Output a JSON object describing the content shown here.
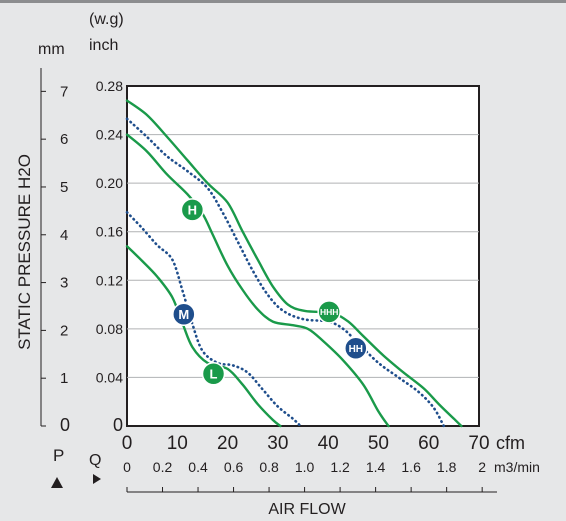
{
  "chart_data": {
    "type": "line",
    "units": {
      "mm_label": "mm",
      "wg_label": "(w.g)",
      "inch_label": "inch",
      "cfm_label": "cfm",
      "m3min_label": "m3/min"
    },
    "ylabel": "STATIC PRESSURE H2O",
    "xlabel": "AIR FLOW",
    "p_label": "P",
    "q_label": "Q",
    "x_cfm_ticks": [
      "0",
      "10",
      "20",
      "30",
      "40",
      "50",
      "60",
      "70"
    ],
    "x_m3_ticks": [
      "0",
      "0.2",
      "0.4",
      "0.6",
      "0.8",
      "1.0",
      "1.2",
      "1.4",
      "1.6",
      "1.8",
      "2"
    ],
    "y_inch_ticks": [
      "0",
      "0.04",
      "0.08",
      "0.12",
      "0.16",
      "0.20",
      "0.24",
      "0.28"
    ],
    "y_mm_ticks": [
      "0",
      "1",
      "2",
      "3",
      "4",
      "5",
      "6",
      "7"
    ],
    "xlim": [
      0,
      70
    ],
    "ylim": [
      0,
      0.28
    ],
    "grid": "horizontal",
    "series": [
      {
        "name": "HHH",
        "color": "#1a9a4a",
        "style": "solid",
        "label_at": [
          40.2,
          0.094
        ],
        "label_color": "#1a9a4a",
        "points": [
          [
            0,
            0.268
          ],
          [
            4,
            0.256
          ],
          [
            8,
            0.238
          ],
          [
            12,
            0.219
          ],
          [
            16,
            0.2
          ],
          [
            20,
            0.184
          ],
          [
            23,
            0.16
          ],
          [
            26,
            0.137
          ],
          [
            29,
            0.115
          ],
          [
            32,
            0.1
          ],
          [
            35,
            0.095
          ],
          [
            38,
            0.094
          ],
          [
            41,
            0.093
          ],
          [
            44,
            0.086
          ],
          [
            47,
            0.074
          ],
          [
            51,
            0.058
          ],
          [
            55,
            0.044
          ],
          [
            59,
            0.031
          ],
          [
            62,
            0.018
          ],
          [
            65,
            0.006
          ],
          [
            66.5,
            0
          ]
        ]
      },
      {
        "name": "HH",
        "color": "#1f4e8c",
        "style": "dotted",
        "label_at": [
          45.5,
          0.064
        ],
        "label_color": "#1f4e8c",
        "points": [
          [
            0,
            0.253
          ],
          [
            4,
            0.238
          ],
          [
            8,
            0.222
          ],
          [
            12,
            0.21
          ],
          [
            16,
            0.196
          ],
          [
            19,
            0.176
          ],
          [
            22,
            0.152
          ],
          [
            25,
            0.128
          ],
          [
            28,
            0.108
          ],
          [
            31,
            0.095
          ],
          [
            35,
            0.088
          ],
          [
            40,
            0.086
          ],
          [
            43,
            0.08
          ],
          [
            46,
            0.068
          ],
          [
            50,
            0.052
          ],
          [
            54,
            0.04
          ],
          [
            58,
            0.028
          ],
          [
            61,
            0.015
          ],
          [
            63,
            0
          ],
          [
            63,
            0
          ]
        ]
      },
      {
        "name": "H",
        "color": "#1a9a4a",
        "style": "solid",
        "label_at": [
          13,
          0.178
        ],
        "label_color": "#1a9a4a",
        "points": [
          [
            0,
            0.24
          ],
          [
            4,
            0.226
          ],
          [
            8,
            0.207
          ],
          [
            12,
            0.191
          ],
          [
            15,
            0.175
          ],
          [
            17,
            0.158
          ],
          [
            20,
            0.132
          ],
          [
            23,
            0.112
          ],
          [
            26,
            0.096
          ],
          [
            29,
            0.086
          ],
          [
            33,
            0.083
          ],
          [
            36,
            0.08
          ],
          [
            39,
            0.07
          ],
          [
            43,
            0.054
          ],
          [
            47,
            0.034
          ],
          [
            50,
            0.012
          ],
          [
            52,
            0
          ]
        ]
      },
      {
        "name": "M",
        "color": "#1f4e8c",
        "style": "dotted",
        "label_at": [
          11.3,
          0.092
        ],
        "label_color": "#1f4e8c",
        "points": [
          [
            0,
            0.176
          ],
          [
            3,
            0.163
          ],
          [
            6,
            0.149
          ],
          [
            9,
            0.137
          ],
          [
            11,
            0.112
          ],
          [
            13,
            0.084
          ],
          [
            15,
            0.062
          ],
          [
            18,
            0.052
          ],
          [
            21,
            0.05
          ],
          [
            24,
            0.044
          ],
          [
            27,
            0.03
          ],
          [
            30,
            0.016
          ],
          [
            33,
            0.006
          ],
          [
            34.5,
            0
          ]
        ]
      },
      {
        "name": "L",
        "color": "#1a9a4a",
        "style": "solid",
        "label_at": [
          17.2,
          0.043
        ],
        "label_color": "#1a9a4a",
        "points": [
          [
            0,
            0.148
          ],
          [
            3,
            0.136
          ],
          [
            6,
            0.123
          ],
          [
            9,
            0.106
          ],
          [
            11,
            0.085
          ],
          [
            13,
            0.065
          ],
          [
            16,
            0.052
          ],
          [
            20,
            0.047
          ],
          [
            23,
            0.034
          ],
          [
            26,
            0.018
          ],
          [
            29,
            0.005
          ],
          [
            30.5,
            0
          ]
        ]
      }
    ]
  }
}
